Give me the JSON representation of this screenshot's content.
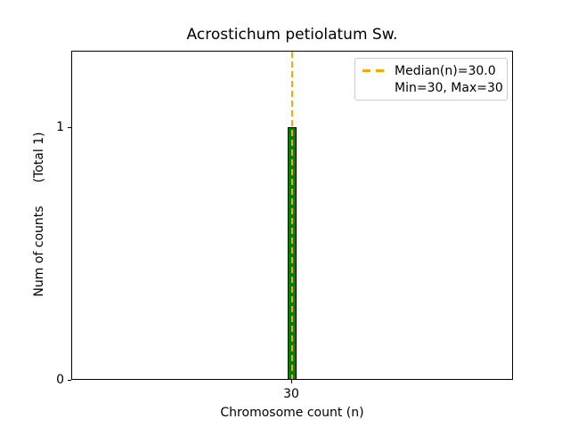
{
  "chart_data": {
    "type": "bar",
    "title": "Acrostichum petiolatum Sw.",
    "xlabel": "Chromosome count (n)",
    "ylabel": "Num of counts    (Total 1)",
    "ylabel_parts": [
      "Num of counts",
      "(Total 1)"
    ],
    "categories": [
      30
    ],
    "values": [
      1
    ],
    "total_counts": 1,
    "median": "30.0",
    "min": 30,
    "max": 30,
    "xticks": [
      30
    ],
    "yticks": [
      0,
      1
    ],
    "ylim": [
      0,
      1.3
    ],
    "grid": false,
    "legend_position": "upper right",
    "legend_entries": [
      "Median(n)=30.0",
      "Min=30, Max=30"
    ],
    "colors": {
      "bar_fill": "#008000",
      "bar_edge": "#000000",
      "median_line": "#FFA500",
      "axes_spine": "#000000",
      "legend_border": "#cccccc",
      "background": "#ffffff"
    }
  }
}
